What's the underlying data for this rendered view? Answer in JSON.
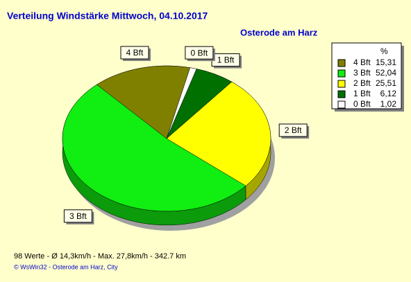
{
  "chart_data": {
    "type": "pie",
    "title": "Verteilung Windstärke  Mittwoch, 04.10.2017",
    "subtitle": "Osterode am Harz",
    "legend_header": "%",
    "categories": [
      "4 Bft",
      "3 Bft",
      "2 Bft",
      "1 Bft",
      "0 Bft"
    ],
    "values": [
      15.31,
      52.04,
      25.51,
      6.12,
      1.02
    ],
    "value_labels": [
      "15,31",
      "52,04",
      "25,51",
      "6,12",
      "1,02"
    ],
    "colors": [
      "#808000",
      "#11ee11",
      "#ffff00",
      "#007000",
      "#ffffff"
    ],
    "footer": "98 Werte   -   Ø 14,3km/h  -  Max. 27,8km/h   -   342.7 km",
    "copyright": "© WsWin32  -  Osterode am Harz, City"
  }
}
